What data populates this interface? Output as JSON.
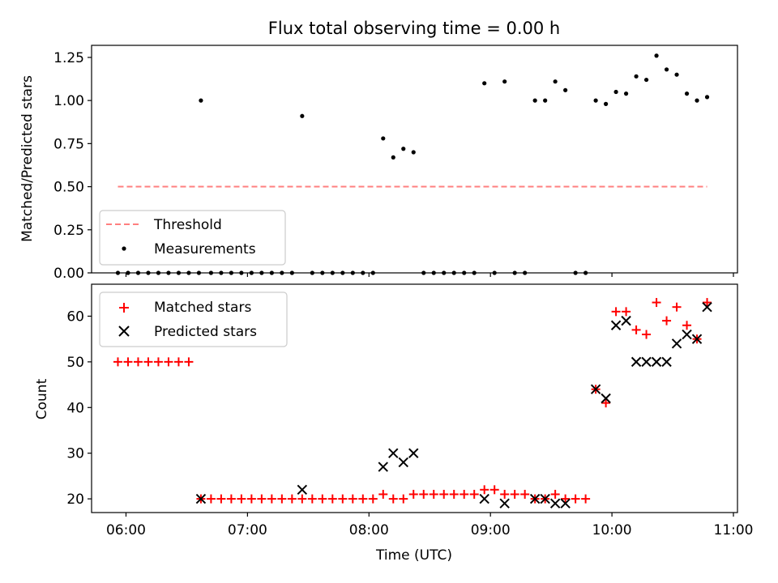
{
  "chart_data": [
    {
      "type": "scatter",
      "title": "Flux total observing time = 0.00 h",
      "ylabel": "Matched/Predicted stars",
      "xlim": [
        "05:43",
        "11:02"
      ],
      "ylim": [
        0,
        1.32
      ],
      "yticks": [
        0,
        0.25,
        0.5,
        0.75,
        1.0,
        1.25
      ],
      "ytick_labels": [
        "0.00",
        "0.25",
        "0.50",
        "0.75",
        "1.00",
        "1.25"
      ],
      "legend": "lower-left",
      "series": [
        {
          "name": "Threshold",
          "style": "dashed-line",
          "color": "#ff7f7f",
          "x": [
            "05:56",
            "10:47"
          ],
          "y": [
            0.5,
            0.5
          ]
        },
        {
          "name": "Measurements",
          "style": "dots",
          "color": "#000000",
          "points": [
            [
              "05:56",
              0
            ],
            [
              "06:01",
              0
            ],
            [
              "06:06",
              0
            ],
            [
              "06:11",
              0
            ],
            [
              "06:16",
              0
            ],
            [
              "06:21",
              0
            ],
            [
              "06:26",
              0
            ],
            [
              "06:31",
              0
            ],
            [
              "06:36",
              0
            ],
            [
              "06:37",
              1.0
            ],
            [
              "06:42",
              0
            ],
            [
              "06:47",
              0
            ],
            [
              "06:52",
              0
            ],
            [
              "06:57",
              0
            ],
            [
              "07:02",
              0
            ],
            [
              "07:07",
              0
            ],
            [
              "07:12",
              0
            ],
            [
              "07:17",
              0
            ],
            [
              "07:22",
              0
            ],
            [
              "07:27",
              0.91
            ],
            [
              "07:32",
              0
            ],
            [
              "07:37",
              0
            ],
            [
              "07:42",
              0
            ],
            [
              "07:47",
              0
            ],
            [
              "07:52",
              0
            ],
            [
              "07:57",
              0
            ],
            [
              "08:02",
              0
            ],
            [
              "08:07",
              0.78
            ],
            [
              "08:12",
              0.67
            ],
            [
              "08:17",
              0.72
            ],
            [
              "08:22",
              0.7
            ],
            [
              "08:27",
              0
            ],
            [
              "08:32",
              0
            ],
            [
              "08:37",
              0
            ],
            [
              "08:42",
              0
            ],
            [
              "08:47",
              0
            ],
            [
              "08:52",
              0
            ],
            [
              "08:57",
              1.1
            ],
            [
              "09:02",
              0
            ],
            [
              "09:07",
              1.11
            ],
            [
              "09:12",
              0
            ],
            [
              "09:17",
              0
            ],
            [
              "09:22",
              1.0
            ],
            [
              "09:27",
              1.0
            ],
            [
              "09:32",
              1.11
            ],
            [
              "09:37",
              1.06
            ],
            [
              "09:42",
              0
            ],
            [
              "09:47",
              0
            ],
            [
              "09:52",
              1.0
            ],
            [
              "09:57",
              0.98
            ],
            [
              "10:02",
              1.05
            ],
            [
              "10:07",
              1.04
            ],
            [
              "10:12",
              1.14
            ],
            [
              "10:17",
              1.12
            ],
            [
              "10:22",
              1.26
            ],
            [
              "10:27",
              1.18
            ],
            [
              "10:32",
              1.15
            ],
            [
              "10:37",
              1.04
            ],
            [
              "10:42",
              1.0
            ],
            [
              "10:47",
              1.02
            ]
          ]
        }
      ]
    },
    {
      "type": "scatter",
      "xlabel": "Time (UTC)",
      "ylabel": "Count",
      "xlim": [
        "05:43",
        "11:02"
      ],
      "ylim": [
        17,
        67
      ],
      "yticks": [
        20,
        30,
        40,
        50,
        60
      ],
      "xtick_labels": [
        "06:00",
        "07:00",
        "08:00",
        "09:00",
        "10:00",
        "11:00"
      ],
      "legend": "top-left",
      "series": [
        {
          "name": "Matched stars",
          "marker": "plus",
          "color": "#ff0000",
          "points": [
            [
              "05:56",
              50
            ],
            [
              "06:01",
              50
            ],
            [
              "06:06",
              50
            ],
            [
              "06:11",
              50
            ],
            [
              "06:16",
              50
            ],
            [
              "06:21",
              50
            ],
            [
              "06:26",
              50
            ],
            [
              "06:31",
              50
            ],
            [
              "06:37",
              20
            ],
            [
              "06:42",
              20
            ],
            [
              "06:47",
              20
            ],
            [
              "06:52",
              20
            ],
            [
              "06:57",
              20
            ],
            [
              "07:02",
              20
            ],
            [
              "07:07",
              20
            ],
            [
              "07:12",
              20
            ],
            [
              "07:17",
              20
            ],
            [
              "07:22",
              20
            ],
            [
              "07:27",
              20
            ],
            [
              "07:32",
              20
            ],
            [
              "07:37",
              20
            ],
            [
              "07:42",
              20
            ],
            [
              "07:47",
              20
            ],
            [
              "07:52",
              20
            ],
            [
              "07:57",
              20
            ],
            [
              "08:02",
              20
            ],
            [
              "08:07",
              21
            ],
            [
              "08:12",
              20
            ],
            [
              "08:17",
              20
            ],
            [
              "08:22",
              21
            ],
            [
              "08:27",
              21
            ],
            [
              "08:32",
              21
            ],
            [
              "08:37",
              21
            ],
            [
              "08:42",
              21
            ],
            [
              "08:47",
              21
            ],
            [
              "08:52",
              21
            ],
            [
              "08:57",
              22
            ],
            [
              "09:02",
              22
            ],
            [
              "09:07",
              21
            ],
            [
              "09:12",
              21
            ],
            [
              "09:17",
              21
            ],
            [
              "09:22",
              20
            ],
            [
              "09:27",
              20
            ],
            [
              "09:32",
              21
            ],
            [
              "09:37",
              20
            ],
            [
              "09:42",
              20
            ],
            [
              "09:47",
              20
            ],
            [
              "09:52",
              44
            ],
            [
              "09:57",
              41
            ],
            [
              "10:02",
              61
            ],
            [
              "10:07",
              61
            ],
            [
              "10:12",
              57
            ],
            [
              "10:17",
              56
            ],
            [
              "10:22",
              63
            ],
            [
              "10:27",
              59
            ],
            [
              "10:32",
              62
            ],
            [
              "10:37",
              58
            ],
            [
              "10:42",
              55
            ],
            [
              "10:47",
              63
            ]
          ]
        },
        {
          "name": "Predicted stars",
          "marker": "x",
          "color": "#000000",
          "points": [
            [
              "06:37",
              20
            ],
            [
              "07:27",
              22
            ],
            [
              "08:07",
              27
            ],
            [
              "08:12",
              30
            ],
            [
              "08:17",
              28
            ],
            [
              "08:22",
              30
            ],
            [
              "08:57",
              20
            ],
            [
              "09:07",
              19
            ],
            [
              "09:22",
              20
            ],
            [
              "09:27",
              20
            ],
            [
              "09:32",
              19
            ],
            [
              "09:37",
              19
            ],
            [
              "09:52",
              44
            ],
            [
              "09:57",
              42
            ],
            [
              "10:02",
              58
            ],
            [
              "10:07",
              59
            ],
            [
              "10:12",
              50
            ],
            [
              "10:17",
              50
            ],
            [
              "10:22",
              50
            ],
            [
              "10:27",
              50
            ],
            [
              "10:32",
              54
            ],
            [
              "10:37",
              56
            ],
            [
              "10:42",
              55
            ],
            [
              "10:47",
              62
            ]
          ]
        }
      ]
    }
  ]
}
